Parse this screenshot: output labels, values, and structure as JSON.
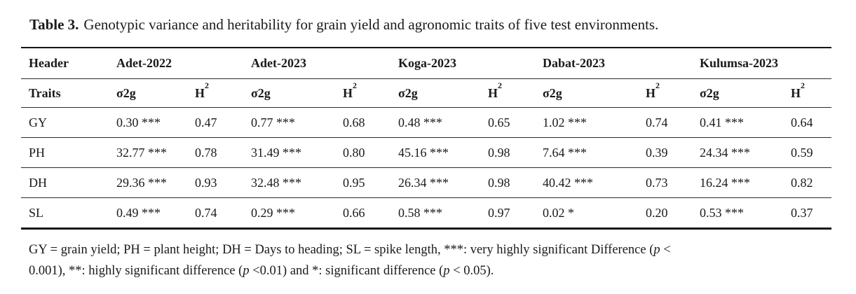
{
  "caption": {
    "label": "Table 3.",
    "text": "Genotypic variance and heritability for grain yield and agronomic traits of five test environments."
  },
  "table": {
    "corner_header": "Header",
    "traits_header": "Traits",
    "variance_label": "σ2g",
    "heritability_label": {
      "base": "H",
      "sup": "2"
    },
    "environments": [
      "Adet-2022",
      "Adet-2023",
      "Koga-2023",
      "Dabat-2023",
      "Kulumsa-2023"
    ],
    "rows": [
      {
        "trait": "GY",
        "cells": [
          "0.30 ***",
          "0.47",
          "0.77 ***",
          "0.68",
          "0.48 ***",
          "0.65",
          "1.02 ***",
          "0.74",
          "0.41 ***",
          "0.64"
        ]
      },
      {
        "trait": "PH",
        "cells": [
          "32.77 ***",
          "0.78",
          "31.49 ***",
          "0.80",
          "45.16 ***",
          "0.98",
          "7.64 ***",
          "0.39",
          "24.34 ***",
          "0.59"
        ]
      },
      {
        "trait": "DH",
        "cells": [
          "29.36 ***",
          "0.93",
          "32.48 ***",
          "0.95",
          "26.34 ***",
          "0.98",
          "40.42 ***",
          "0.73",
          "16.24 ***",
          "0.82"
        ]
      },
      {
        "trait": "SL",
        "cells": [
          "0.49 ***",
          "0.74",
          "0.29 ***",
          "0.66",
          "0.58 ***",
          "0.97",
          "0.02 *",
          "0.20",
          "0.53 ***",
          "0.37"
        ]
      }
    ]
  },
  "footnote": {
    "lines": [
      [
        {
          "t": "GY = grain yield; PH = plant height; DH = Days to heading; SL = spike length, ***: very highly significant Difference ("
        },
        {
          "t": "p",
          "i": true
        },
        {
          "t": " <"
        }
      ],
      [
        {
          "t": "0.001), **: highly significant difference ("
        },
        {
          "t": "p",
          "i": true
        },
        {
          "t": " <0.01) and *: significant difference ("
        },
        {
          "t": "p",
          "i": true
        },
        {
          "t": " < 0.05)."
        }
      ]
    ]
  },
  "colors": {
    "text": "#1a1a1a",
    "rule_thick": "#161616",
    "rule_thin": "#2b2b2b",
    "background": "#ffffff"
  }
}
